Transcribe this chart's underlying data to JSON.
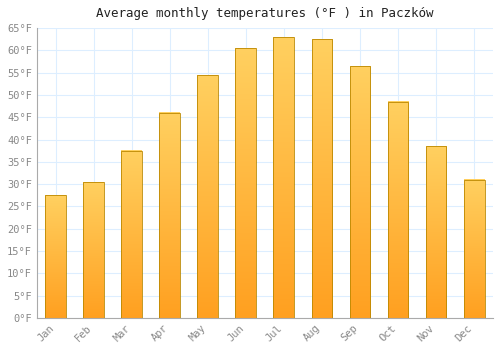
{
  "title": "Average monthly temperatures (°F ) in Paczków",
  "months": [
    "Jan",
    "Feb",
    "Mar",
    "Apr",
    "May",
    "Jun",
    "Jul",
    "Aug",
    "Sep",
    "Oct",
    "Nov",
    "Dec"
  ],
  "values": [
    27.5,
    30.5,
    37.5,
    46.0,
    54.5,
    60.5,
    63.0,
    62.5,
    56.5,
    48.5,
    38.5,
    31.0
  ],
  "bar_color_bottom": "#FFA020",
  "bar_color_top": "#FFD060",
  "bar_edge_color": "#BB8800",
  "background_color": "#FFFFFF",
  "grid_color": "#DDEEFF",
  "text_color": "#888888",
  "title_color": "#222222",
  "ylim": [
    0,
    65
  ],
  "yticks": [
    0,
    5,
    10,
    15,
    20,
    25,
    30,
    35,
    40,
    45,
    50,
    55,
    60,
    65
  ],
  "bar_width": 0.55
}
